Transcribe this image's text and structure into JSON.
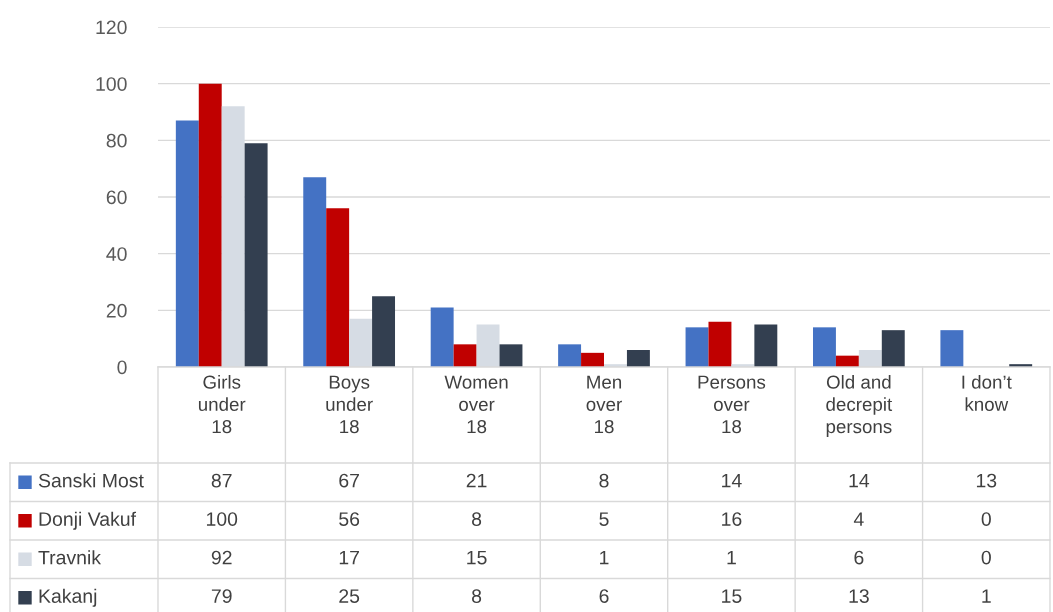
{
  "chart_data": {
    "type": "bar",
    "categories": [
      "Girls\nunder\n18",
      "Boys\nunder\n18",
      "Women\nover\n18",
      "Men\nover\n18",
      "Persons\nover\n18",
      "Old and\ndecrepit\npersons",
      "I don’t\nknow"
    ],
    "series": [
      {
        "name": "Sanski Most",
        "color": "#4472c4",
        "values": [
          87,
          67,
          21,
          8,
          14,
          14,
          13
        ]
      },
      {
        "name": "Donji Vakuf",
        "color": "#c00000",
        "values": [
          100,
          56,
          8,
          5,
          16,
          4,
          0
        ]
      },
      {
        "name": "Travnik",
        "color": "#d6dce4",
        "values": [
          92,
          17,
          15,
          1,
          1,
          6,
          0
        ]
      },
      {
        "name": "Kakanj",
        "color": "#333f50",
        "values": [
          79,
          25,
          8,
          6,
          15,
          13,
          1
        ]
      }
    ],
    "ylim": [
      0,
      120
    ],
    "yticks": [
      0,
      20,
      40,
      60,
      80,
      100,
      120
    ],
    "grid": "y",
    "data_labels": true,
    "legend": "bottom left"
  }
}
